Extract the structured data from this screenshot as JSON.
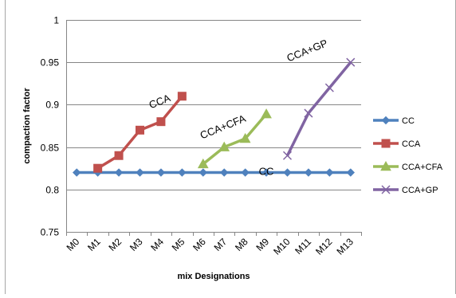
{
  "chart_data": {
    "type": "line",
    "categories": [
      "M0",
      "M1",
      "M2",
      "M3",
      "M4",
      "M5",
      "M6",
      "M7",
      "M8",
      "M9",
      "M10",
      "M11",
      "M12",
      "M13"
    ],
    "xlabel": "mix Designations",
    "ylabel": "compaction factor",
    "ylim": [
      0.75,
      1
    ],
    "yticks": [
      0.75,
      0.8,
      0.85,
      0.9,
      0.95,
      1
    ],
    "ytick_labels": [
      "0.75",
      "0.8",
      "0.85",
      "0.9",
      "0.95",
      "1"
    ],
    "grid": "horizontal",
    "legend_position": "right",
    "series": [
      {
        "name": "CC",
        "color": "#4f81bd",
        "marker": "diamond",
        "x": [
          "M0",
          "M1",
          "M2",
          "M3",
          "M4",
          "M5",
          "M6",
          "M7",
          "M8",
          "M9",
          "M10",
          "M11",
          "M12",
          "M13"
        ],
        "values": [
          0.82,
          0.82,
          0.82,
          0.82,
          0.82,
          0.82,
          0.82,
          0.82,
          0.82,
          0.82,
          0.82,
          0.82,
          0.82,
          0.82
        ]
      },
      {
        "name": "CCA",
        "color": "#c0504d",
        "marker": "square",
        "x": [
          "M1",
          "M2",
          "M3",
          "M4",
          "M5"
        ],
        "values": [
          0.825,
          0.84,
          0.87,
          0.88,
          0.91
        ]
      },
      {
        "name": "CCA+CFA",
        "color": "#9bbb59",
        "marker": "triangle",
        "x": [
          "M6",
          "M7",
          "M8",
          "M9"
        ],
        "values": [
          0.83,
          0.85,
          0.86,
          0.889
        ]
      },
      {
        "name": "CCA+GP",
        "color": "#8064a2",
        "marker": "x",
        "x": [
          "M10",
          "M11",
          "M12",
          "M13"
        ],
        "values": [
          0.84,
          0.89,
          0.92,
          0.95
        ]
      }
    ],
    "annotations": [
      {
        "text": "CCA",
        "x": "M4",
        "y": 0.9
      },
      {
        "text": "CCA+CFA",
        "x": "M7",
        "y": 0.87
      },
      {
        "text": "CCA+GP",
        "x": "M11",
        "y": 0.96
      },
      {
        "text": "CC",
        "x": "M9",
        "y": 0.817
      }
    ]
  }
}
